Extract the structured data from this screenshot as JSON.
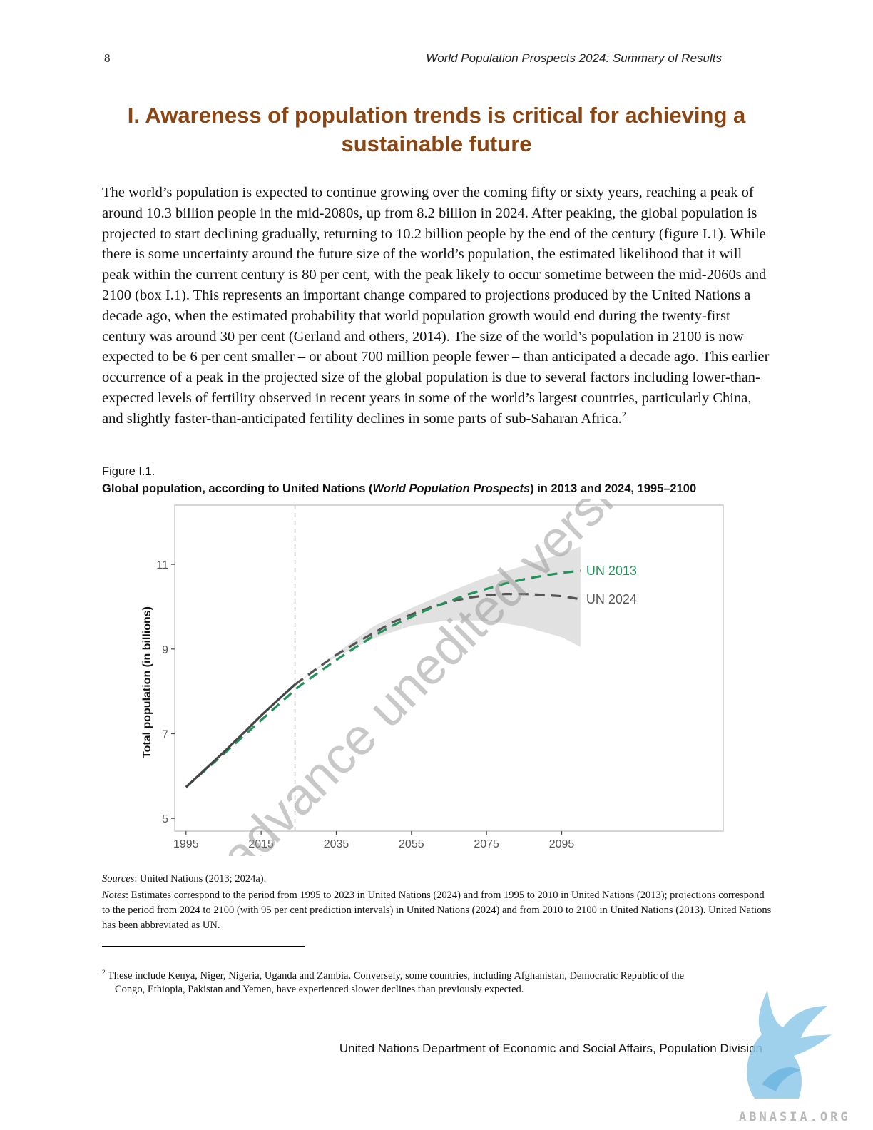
{
  "header": {
    "page_number": "8",
    "running_title": "World Population Prospects 2024: Summary of Results"
  },
  "chapter": {
    "title": "I.  Awareness of population trends is critical for achieving a sustainable future"
  },
  "body": {
    "paragraph": "The world’s population is expected to continue growing over the coming fifty or sixty years, reaching a peak of around 10.3 billion people in the mid-2080s, up from 8.2 billion in 2024. After peaking, the global population is projected to start declining gradually, returning to 10.2 billion people by the end of the century (figure I.1). While there is some uncertainty around the future size of the world’s population, the estimated likelihood that it will peak within the current century is 80 per cent, with the peak likely to occur sometime between the mid-2060s and 2100 (box I.1). This represents an important change compared to projections produced by the United Nations a decade ago, when the estimated probability that world population growth would end during the twenty-first century was around 30 per cent (Gerland and others, 2014). The size of the world’s population in 2100 is now expected to be 6 per cent smaller – or about 700 million people fewer – than anticipated a decade ago. This earlier occurrence of a peak in the projected size of the global population is due to several factors including lower-than-expected levels of fertility observed in recent years in some of the world’s largest countries, particularly China, and slightly faster-than-anticipated fertility declines in some parts of sub-Saharan Africa.",
    "footnote_ref": "2"
  },
  "figure": {
    "label": "Figure I.1.",
    "title_before": "Global population, according to United Nations (",
    "title_italic": "World Population Prospects",
    "title_after": ") in 2013 and 2024, 1995–2100"
  },
  "chart_data": {
    "type": "line",
    "ylabel": "Total population (in billions)",
    "xlabel": "",
    "xlim": [
      1992,
      2138
    ],
    "ylim": [
      4.7,
      12.4
    ],
    "x_ticks": [
      1995,
      2015,
      2035,
      2055,
      2075,
      2095
    ],
    "y_ticks": [
      5,
      7,
      9,
      11
    ],
    "vertical_reference_line": 2024,
    "grid": false,
    "series": [
      {
        "name": "UN 2013",
        "color": "#22935a",
        "style": "dashed",
        "x": [
          1995,
          2000,
          2005,
          2010,
          2015,
          2020,
          2025,
          2030,
          2035,
          2040,
          2045,
          2050,
          2055,
          2060,
          2065,
          2070,
          2075,
          2080,
          2085,
          2090,
          2095,
          2100
        ],
        "y": [
          5.74,
          6.13,
          6.52,
          6.92,
          7.32,
          7.72,
          8.11,
          8.43,
          8.74,
          9.03,
          9.31,
          9.55,
          9.76,
          9.96,
          10.13,
          10.29,
          10.42,
          10.55,
          10.65,
          10.73,
          10.8,
          10.85
        ]
      },
      {
        "name": "UN 2024",
        "color": "#555555",
        "style": "solid-then-dashed",
        "x": [
          1995,
          2000,
          2005,
          2010,
          2015,
          2020,
          2024,
          2030,
          2035,
          2040,
          2045,
          2050,
          2055,
          2060,
          2065,
          2070,
          2075,
          2080,
          2085,
          2090,
          2095,
          2100
        ],
        "y": [
          5.74,
          6.15,
          6.56,
          6.99,
          7.43,
          7.84,
          8.16,
          8.55,
          8.86,
          9.13,
          9.38,
          9.63,
          9.82,
          9.98,
          10.11,
          10.21,
          10.27,
          10.3,
          10.3,
          10.28,
          10.25,
          10.18
        ]
      }
    ],
    "uncertainty_band_un2024": {
      "label": "95 per cent prediction interval",
      "color": "#e1e1e1",
      "x": [
        2024,
        2035,
        2045,
        2055,
        2065,
        2075,
        2085,
        2095,
        2100
      ],
      "lower": [
        8.16,
        8.82,
        9.25,
        9.55,
        9.68,
        9.67,
        9.53,
        9.28,
        9.05
      ],
      "upper": [
        8.16,
        8.9,
        9.54,
        9.97,
        10.35,
        10.7,
        10.97,
        11.25,
        11.42
      ]
    }
  },
  "sources": {
    "label": "Sources",
    "text": ": United Nations (2013; 2024a)."
  },
  "notes": {
    "label": "Notes",
    "text": ": Estimates correspond to the period from 1995 to 2023 in United Nations (2024) and from 1995 to 2010 in United Nations (2013); projections correspond to the period from 2024 to 2100 (with 95 per cent prediction intervals) in United Nations (2024) and from 2010 to 2100 in United Nations (2013). United Nations has been abbreviated as UN."
  },
  "footnote": {
    "number": "2",
    "line1": "These include Kenya, Niger, Nigeria, Uganda and Zambia. Conversely, some countries, including Afghanistan, Democratic Republic of the",
    "line2": "Congo, Ethiopia, Pakistan and Yemen, have experienced slower declines than previously expected."
  },
  "footer": {
    "text": "United Nations Department of Economic and Social Affairs, Population Division"
  },
  "watermarks": {
    "diagonal_text": "advance unedited version",
    "logo_text": "ABNASIA.ORG"
  }
}
